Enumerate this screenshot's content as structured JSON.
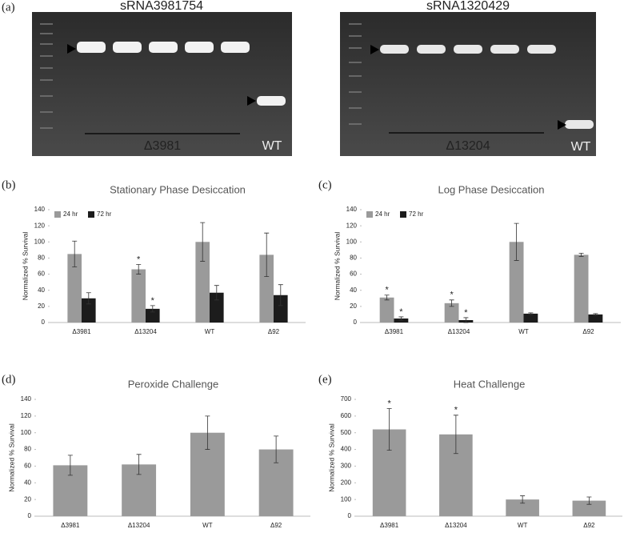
{
  "gels": [
    {
      "title": "sRNA3981754",
      "mutant_label": "Δ3981",
      "wt_label": "WT"
    },
    {
      "title": "sRNA1320429",
      "mutant_label": "Δ13204",
      "wt_label": "WT"
    }
  ],
  "gel_panel_label": "(a)",
  "chart_data": [
    {
      "type": "bar",
      "panel_label": "(b)",
      "title": "Stationary Phase Desiccation",
      "y_label": "Normalized % Survival",
      "categories": [
        "Δ3981",
        "Δ13204",
        "WT",
        "Δ92"
      ],
      "series": [
        {
          "name": "24 hr",
          "color": "#9a9a9a",
          "values": [
            85,
            66,
            100,
            84
          ],
          "errors": [
            16,
            6,
            24,
            27
          ],
          "significance": [
            null,
            "*",
            null,
            null
          ]
        },
        {
          "name": "72 hr",
          "color": "#1c1c1c",
          "values": [
            30,
            17,
            37,
            34
          ],
          "errors": [
            7,
            4,
            9,
            13
          ],
          "significance": [
            null,
            "*",
            null,
            null
          ]
        }
      ],
      "ylim": [
        0,
        140
      ],
      "yticks": [
        0,
        20,
        40,
        60,
        80,
        100,
        120,
        140
      ],
      "legend": "top-left"
    },
    {
      "type": "bar",
      "panel_label": "(c)",
      "title": "Log Phase Desiccation",
      "y_label": "Normalized % Survival",
      "categories": [
        "Δ3981",
        "Δ13204",
        "WT",
        "Δ92"
      ],
      "series": [
        {
          "name": "24 hr",
          "color": "#9a9a9a",
          "values": [
            31,
            24,
            100,
            84
          ],
          "errors": [
            3,
            4,
            23,
            2
          ],
          "significance": [
            "*",
            "*",
            null,
            null
          ]
        },
        {
          "name": "72 hr",
          "color": "#1c1c1c",
          "values": [
            5,
            3,
            11,
            10
          ],
          "errors": [
            2,
            3,
            1,
            1
          ],
          "significance": [
            "*",
            "*",
            null,
            null
          ]
        }
      ],
      "ylim": [
        0,
        140
      ],
      "yticks": [
        0,
        20,
        40,
        60,
        80,
        100,
        120,
        140
      ],
      "legend": "top-left"
    },
    {
      "type": "bar",
      "panel_label": "(d)",
      "title": "Peroxide Challenge",
      "y_label": "Normalized % Survival",
      "categories": [
        "Δ3981",
        "Δ13204",
        "WT",
        "Δ92"
      ],
      "color": "#9a9a9a",
      "values": [
        61,
        62,
        100,
        80
      ],
      "errors": [
        12,
        12,
        20,
        16
      ],
      "significance": [
        null,
        null,
        null,
        null
      ],
      "ylim": [
        0,
        140
      ],
      "yticks": [
        0,
        20,
        40,
        60,
        80,
        100,
        120,
        140
      ]
    },
    {
      "type": "bar",
      "panel_label": "(e)",
      "title": "Heat Challenge",
      "y_label": "Normalized % Survival",
      "categories": [
        "Δ3981",
        "Δ13204",
        "WT",
        "Δ92"
      ],
      "color": "#9a9a9a",
      "values": [
        520,
        490,
        100,
        93
      ],
      "errors": [
        125,
        115,
        22,
        22
      ],
      "significance": [
        "*",
        "*",
        null,
        null
      ],
      "ylim": [
        0,
        700
      ],
      "yticks": [
        0,
        100,
        200,
        300,
        400,
        500,
        600,
        700
      ]
    }
  ]
}
